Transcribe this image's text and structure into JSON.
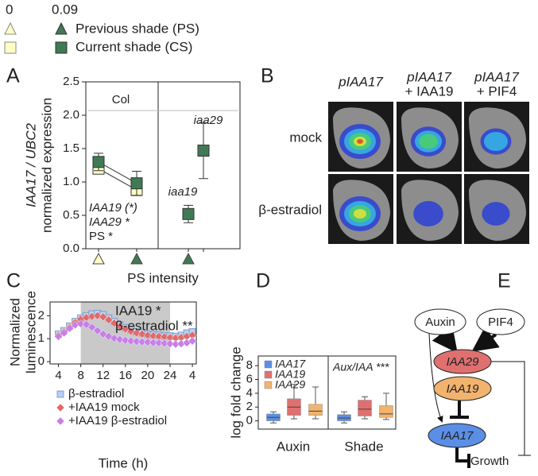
{
  "legend": {
    "levels": [
      0,
      0.09
    ],
    "items": [
      "Previous shade (PS)",
      "Current shade (CS)"
    ]
  },
  "panel_labels": [
    "A",
    "B",
    "C",
    "D",
    "E"
  ],
  "chart_data": [
    {
      "type": "scatter",
      "ylabel": [
        "IAA17 / UBC2",
        "normalized expression"
      ],
      "xlabel": "PS intensity",
      "ylim": [
        0,
        2.5
      ],
      "yticks": [
        {
          "value": 0,
          "label": "0.0"
        },
        0.5,
        {
          "value": 1,
          "label": "1.0"
        },
        1.5,
        {
          "value": 2,
          "label": "2.0"
        },
        2.5
      ],
      "categories": [
        null,
        null,
        null,
        null
      ],
      "reference_line": 2.07,
      "series": [
        {
          "color": "#ffffc4",
          "values": [
            1.2,
            0.88,
            null,
            null
          ],
          "errors": [
            0.08,
            0.08,
            null,
            null
          ]
        },
        {
          "color": "#3f7a55",
          "values": [
            1.3,
            0.98,
            0.52,
            1.47
          ],
          "errors": [
            0.13,
            0.18,
            0.13,
            0.42
          ]
        }
      ],
      "annotations": [
        "Col",
        "iaa19",
        "iaa29",
        "IAA19 (*)",
        "IAA29 *",
        "PS *"
      ]
    },
    {
      "type": "line",
      "ylabel": [
        "Normalized",
        "luminescence"
      ],
      "xlabel": "Time (h)",
      "xlim": [
        2.5,
        28.7
      ],
      "ylim": [
        -0.1,
        2.6
      ],
      "xticks": [
        4,
        8,
        12,
        16,
        20,
        24,
        {
          "value": 28,
          "label": "4"
        }
      ],
      "yticks": [
        0,
        1,
        2
      ],
      "shaded": [
        8,
        24
      ],
      "x": [
        4,
        5,
        6,
        7,
        8,
        9,
        10,
        11,
        12,
        13,
        14,
        15,
        16,
        17,
        18,
        19,
        20,
        21,
        22,
        23,
        24,
        25,
        26,
        27,
        28
      ],
      "series": [
        {
          "name": "β-estradiol",
          "color": "#b8cfee",
          "marker": "square",
          "error": 0.08,
          "values": [
            1.2,
            1.35,
            1.55,
            1.75,
            1.9,
            2.0,
            2.08,
            2.1,
            2.05,
            1.9,
            1.75,
            1.6,
            1.48,
            1.38,
            1.3,
            1.25,
            1.2,
            1.17,
            1.15,
            1.12,
            1.12,
            1.1,
            1.15,
            1.25,
            1.3
          ]
        },
        {
          "name": "+IAA19 mock",
          "color": "#e06a6a",
          "marker": "diamond",
          "error": 0.08,
          "values": [
            1.15,
            1.3,
            1.5,
            1.7,
            1.85,
            1.92,
            1.97,
            2.0,
            1.95,
            1.82,
            1.68,
            1.55,
            1.42,
            1.32,
            1.25,
            1.2,
            1.15,
            1.12,
            1.1,
            1.08,
            1.05,
            1.03,
            1.05,
            1.1,
            1.15
          ]
        },
        {
          "name": "+IAA19  β-estradiol",
          "color": "#c680e8",
          "marker": "diamond",
          "error": 0.08,
          "values": [
            1.1,
            1.25,
            1.45,
            1.6,
            1.65,
            1.62,
            1.5,
            1.35,
            1.2,
            1.1,
            1.02,
            0.97,
            0.93,
            0.9,
            0.88,
            0.86,
            0.85,
            0.83,
            0.82,
            0.8,
            0.78,
            0.76,
            0.78,
            0.82,
            0.9
          ]
        }
      ],
      "annotations": [
        "IAA19 *",
        "β-estradiol **"
      ]
    },
    {
      "type": "box",
      "ylabel": "log fold change",
      "ylim": [
        -1.2,
        9.4
      ],
      "yticks": [
        0,
        2,
        4,
        6,
        8
      ],
      "categories": [
        "Auxin",
        "Shade"
      ],
      "series": [
        {
          "name": "IAA17",
          "color": "#5b8fe6",
          "values": [
            {
              "min": -0.3,
              "q1": 0,
              "median": 0.5,
              "q3": 1,
              "max": 1.3
            },
            {
              "min": -0.3,
              "q1": 0,
              "median": 0.4,
              "q3": 0.9,
              "max": 1.3
            }
          ]
        },
        {
          "name": "IAA19",
          "color": "#e07070",
          "values": [
            {
              "min": 0.3,
              "q1": 0.8,
              "median": 2,
              "q3": 3.2,
              "max": 5.3
            },
            {
              "min": 0.3,
              "q1": 0.7,
              "median": 1.7,
              "q3": 3,
              "max": 3.5
            }
          ]
        },
        {
          "name": "IAA29",
          "color": "#f2b36e",
          "values": [
            {
              "min": 0.3,
              "q1": 0.8,
              "median": 1.4,
              "q3": 2.4,
              "max": 4.9
            },
            {
              "min": 0.2,
              "q1": 0.5,
              "median": 1,
              "q3": 2.2,
              "max": 4
            }
          ]
        }
      ],
      "annotation": "Aux/IAA ***"
    }
  ],
  "panel_b": {
    "columns": [
      [
        "pIAA17"
      ],
      [
        "pIAA17",
        "+ IAA19"
      ],
      [
        "pIAA17",
        "+ PIF4"
      ]
    ],
    "rows": [
      "mock",
      "β-estradiol"
    ]
  },
  "panel_e": {
    "nodes": [
      "Auxin",
      "PIF4",
      "IAA29",
      "IAA19",
      "IAA17"
    ],
    "output": "Growth"
  }
}
